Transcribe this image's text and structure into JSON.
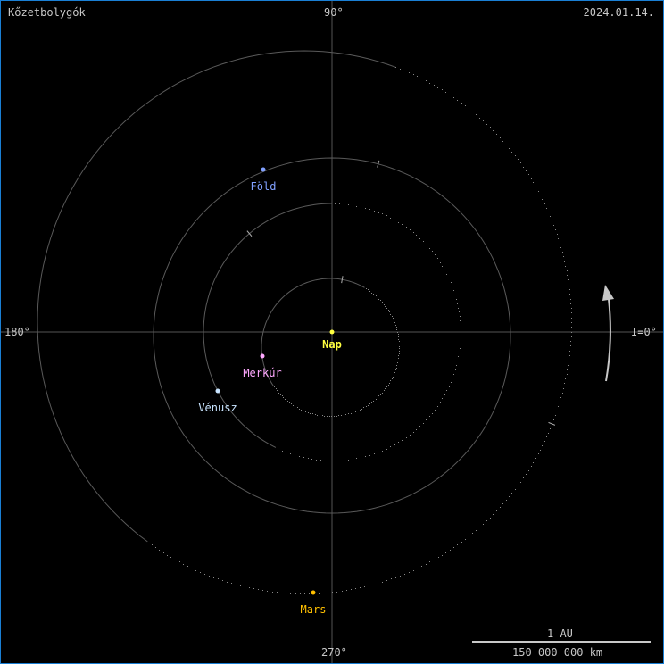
{
  "header": {
    "title": "Kőzetbolygók",
    "date": "2024.01.14."
  },
  "axes": {
    "top": "90°",
    "left": "180°",
    "bottom": "270°",
    "right": "I=0°"
  },
  "scale": {
    "label_top": "1 AU",
    "label_bottom": "150 000 000 km"
  },
  "colors": {
    "axis": "#555555",
    "orbit": "#5a5a5a",
    "text": "#c8c8c8",
    "arrow": "#c8c8c8",
    "border": "#1a7fd4"
  },
  "bodies": [
    {
      "name": "Nap",
      "color": "#ffff40"
    },
    {
      "name": "Merkúr",
      "color": "#ffa8ff"
    },
    {
      "name": "Vénusz",
      "color": "#c8e4ff"
    },
    {
      "name": "Föld",
      "color": "#80a0ff"
    },
    {
      "name": "Mars",
      "color": "#ffc000"
    }
  ],
  "direction_icon": "counterclockwise-arrow-icon"
}
